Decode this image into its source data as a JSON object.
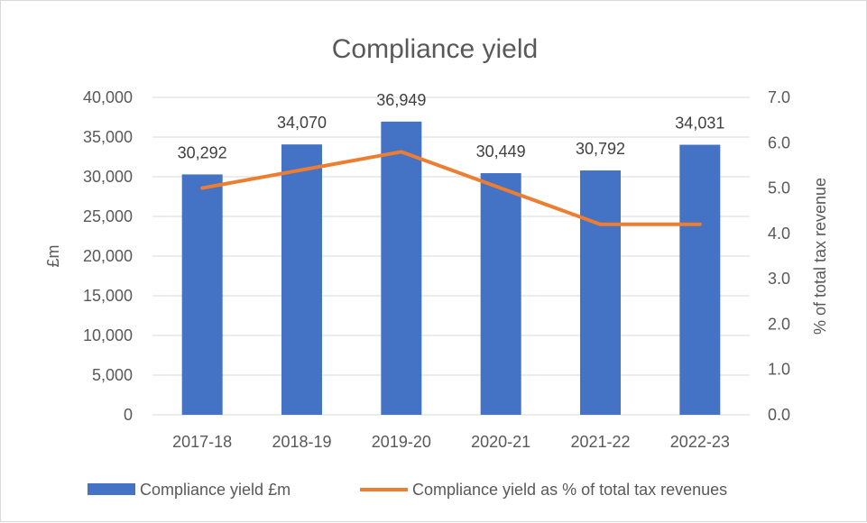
{
  "chart_data": {
    "type": "bar",
    "title": "Compliance yield",
    "categories": [
      "2017-18",
      "2018-19",
      "2019-20",
      "2020-21",
      "2021-22",
      "2022-23"
    ],
    "series": [
      {
        "name": "Compliance yield £m",
        "kind": "bar",
        "axis": "left",
        "values": [
          30292,
          34070,
          36949,
          30449,
          30792,
          34031
        ],
        "labels": [
          "30,292",
          "34,070",
          "36,949",
          "30,449",
          "30,792",
          "34,031"
        ],
        "color": "#4472C4"
      },
      {
        "name": "Compliance yield as % of total tax revenues",
        "kind": "line",
        "axis": "right",
        "values": [
          5.0,
          5.4,
          5.8,
          5.0,
          4.2,
          4.2
        ],
        "color": "#ED7D31"
      }
    ],
    "ylabel": "£m",
    "y2label": "% of total tax revenue",
    "ylim": [
      0,
      40000
    ],
    "y2lim": [
      0,
      7
    ],
    "yticks": [
      "0",
      "5,000",
      "10,000",
      "15,000",
      "20,000",
      "25,000",
      "30,000",
      "35,000",
      "40,000"
    ],
    "y2ticks": [
      "0.0",
      "1.0",
      "2.0",
      "3.0",
      "4.0",
      "5.0",
      "6.0",
      "7.0"
    ],
    "grid": true,
    "legend": "bottom",
    "colors": {
      "gridline": "#d9d9d9",
      "text": "#595959",
      "label": "#404040"
    }
  }
}
